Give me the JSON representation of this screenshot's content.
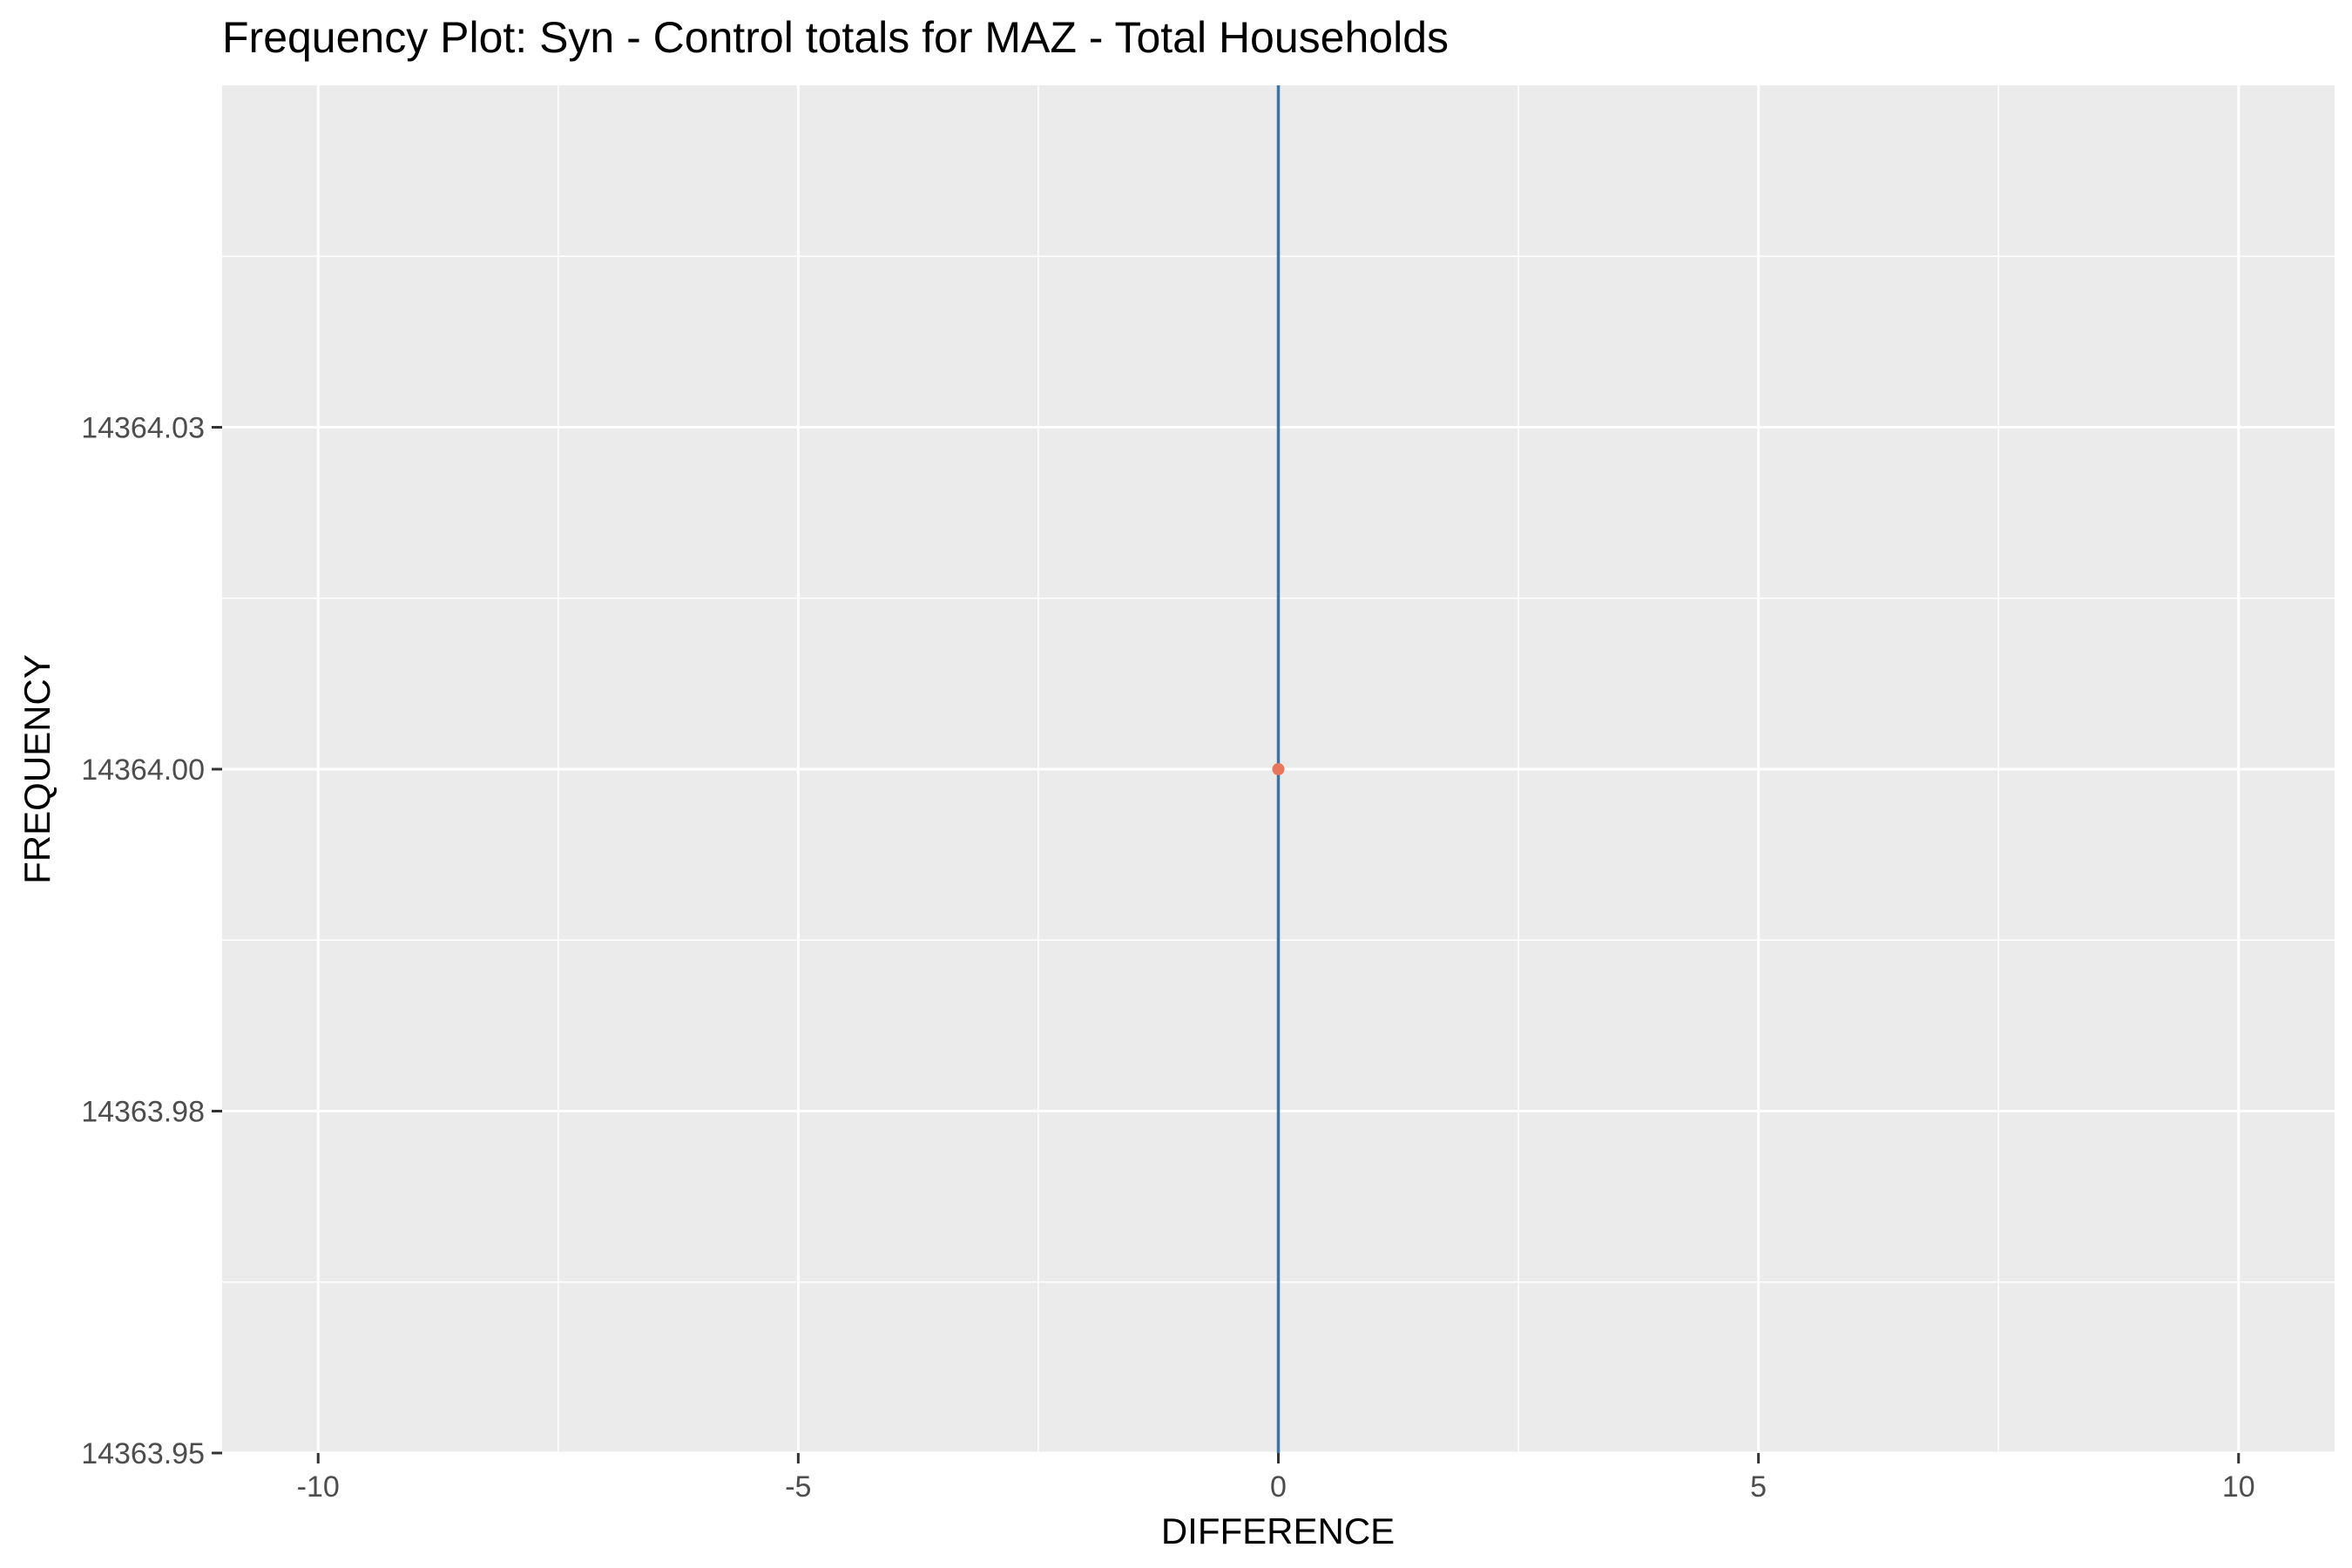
{
  "chart_data": {
    "type": "scatter",
    "title": "Frequency Plot: Syn - Control totals for MAZ - Total Households",
    "xlabel": "DIFFERENCE",
    "ylabel": "FREQUENCY",
    "xlim": [
      -11,
      11
    ],
    "ylim": [
      14363.95,
      14364.05
    ],
    "x_ticks": [
      -10,
      -5,
      0,
      5,
      10
    ],
    "x_tick_labels": [
      "-10",
      "-5",
      "0",
      "5",
      "10"
    ],
    "y_ticks": [
      14363.95,
      14363.975,
      14364.0,
      14364.025
    ],
    "y_tick_labels": [
      "14363.95",
      "14363.98",
      "14364.00",
      "14364.03"
    ],
    "grid": true,
    "points": [
      {
        "x": 0,
        "y": 14364.0
      }
    ],
    "reference_lines": [
      {
        "orientation": "vertical",
        "x": 0
      }
    ],
    "colors": {
      "panel_background": "#ebebeb",
      "grid": "#ffffff",
      "point": "#e8765a",
      "reference_line": "#3b74a6"
    }
  }
}
